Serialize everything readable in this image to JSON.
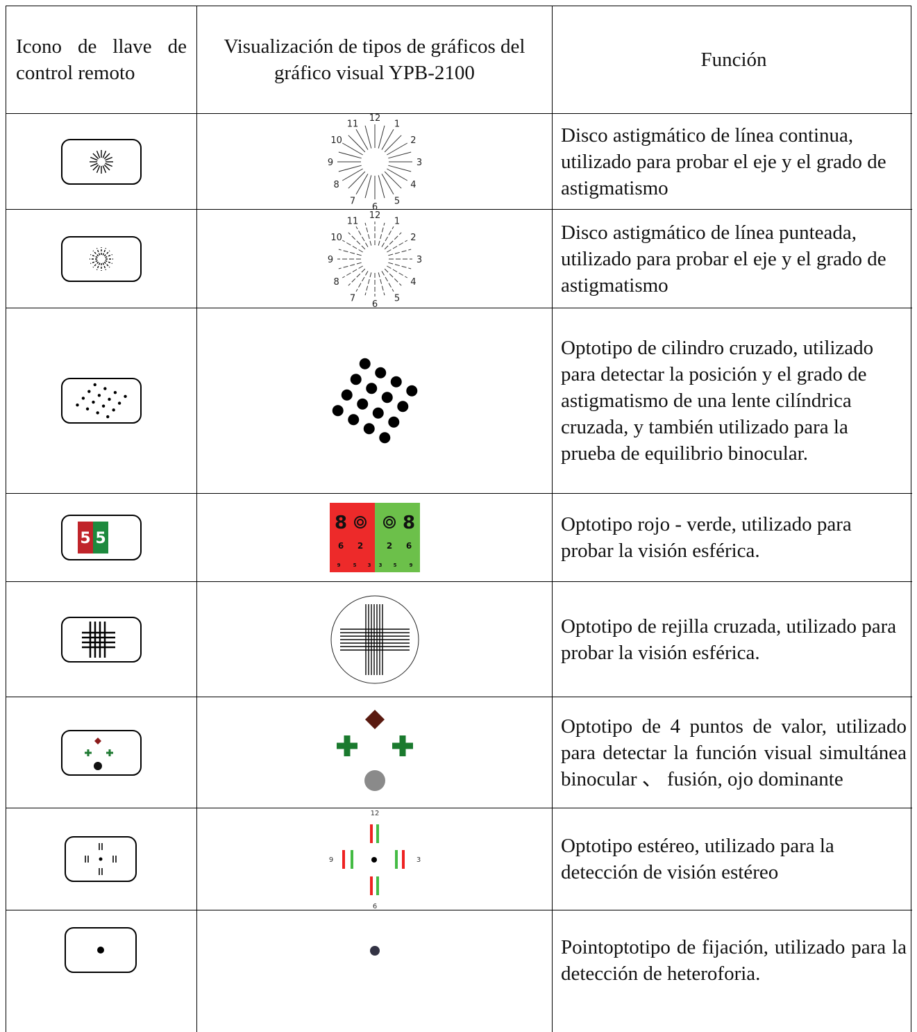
{
  "header": [
    "Icono de llave de control remoto",
    "Visualización de tipos de gráficos del gráfico visual YPB-2100",
    "Función"
  ],
  "rows": [
    {
      "function": "Disco astigmático de línea continua, utilizado para probar el eje y el grado de astigmatismo"
    },
    {
      "function": "Disco astigmático de línea punteada, utilizado para probar el eje y el grado de astigmatismo"
    },
    {
      "function": "Optotipo de cilindro cruzado, utilizado para detectar la posición y el grado de astigmatismo de una lente cilíndrica cruzada, y también utilizado para la prueba de equilibrio binocular."
    },
    {
      "function": "Optotipo rojo - verde, utilizado para probar la visión esférica."
    },
    {
      "function": "Optotipo de rejilla cruzada, utilizado para probar la visión esférica."
    },
    {
      "function": "Optotipo de 4 puntos de valor, utilizado para detectar la función visual simultánea binocular 、 fusión, ojo dominante"
    },
    {
      "function": "Optotipo estéreo, utilizado para la detección de visión estéreo"
    },
    {
      "function": "Pointoptotipo de fijación, utilizado para la detección de heteroforia."
    }
  ],
  "dial_numbers": [
    12,
    1,
    2,
    3,
    4,
    5,
    6,
    7,
    8,
    9,
    10,
    11
  ],
  "red_green": {
    "icon_digits": [
      "5",
      "5"
    ],
    "left": {
      "top": "8",
      "middle": [
        "6",
        "2"
      ],
      "bottom": [
        "9",
        "5",
        "3"
      ]
    },
    "right": {
      "top": "8",
      "middle": [
        "2",
        "6"
      ],
      "bottom": [
        "3",
        "5",
        "9"
      ]
    }
  },
  "stereo_labels": {
    "top": "12",
    "left": "9",
    "right": "3",
    "bottom": "6"
  }
}
